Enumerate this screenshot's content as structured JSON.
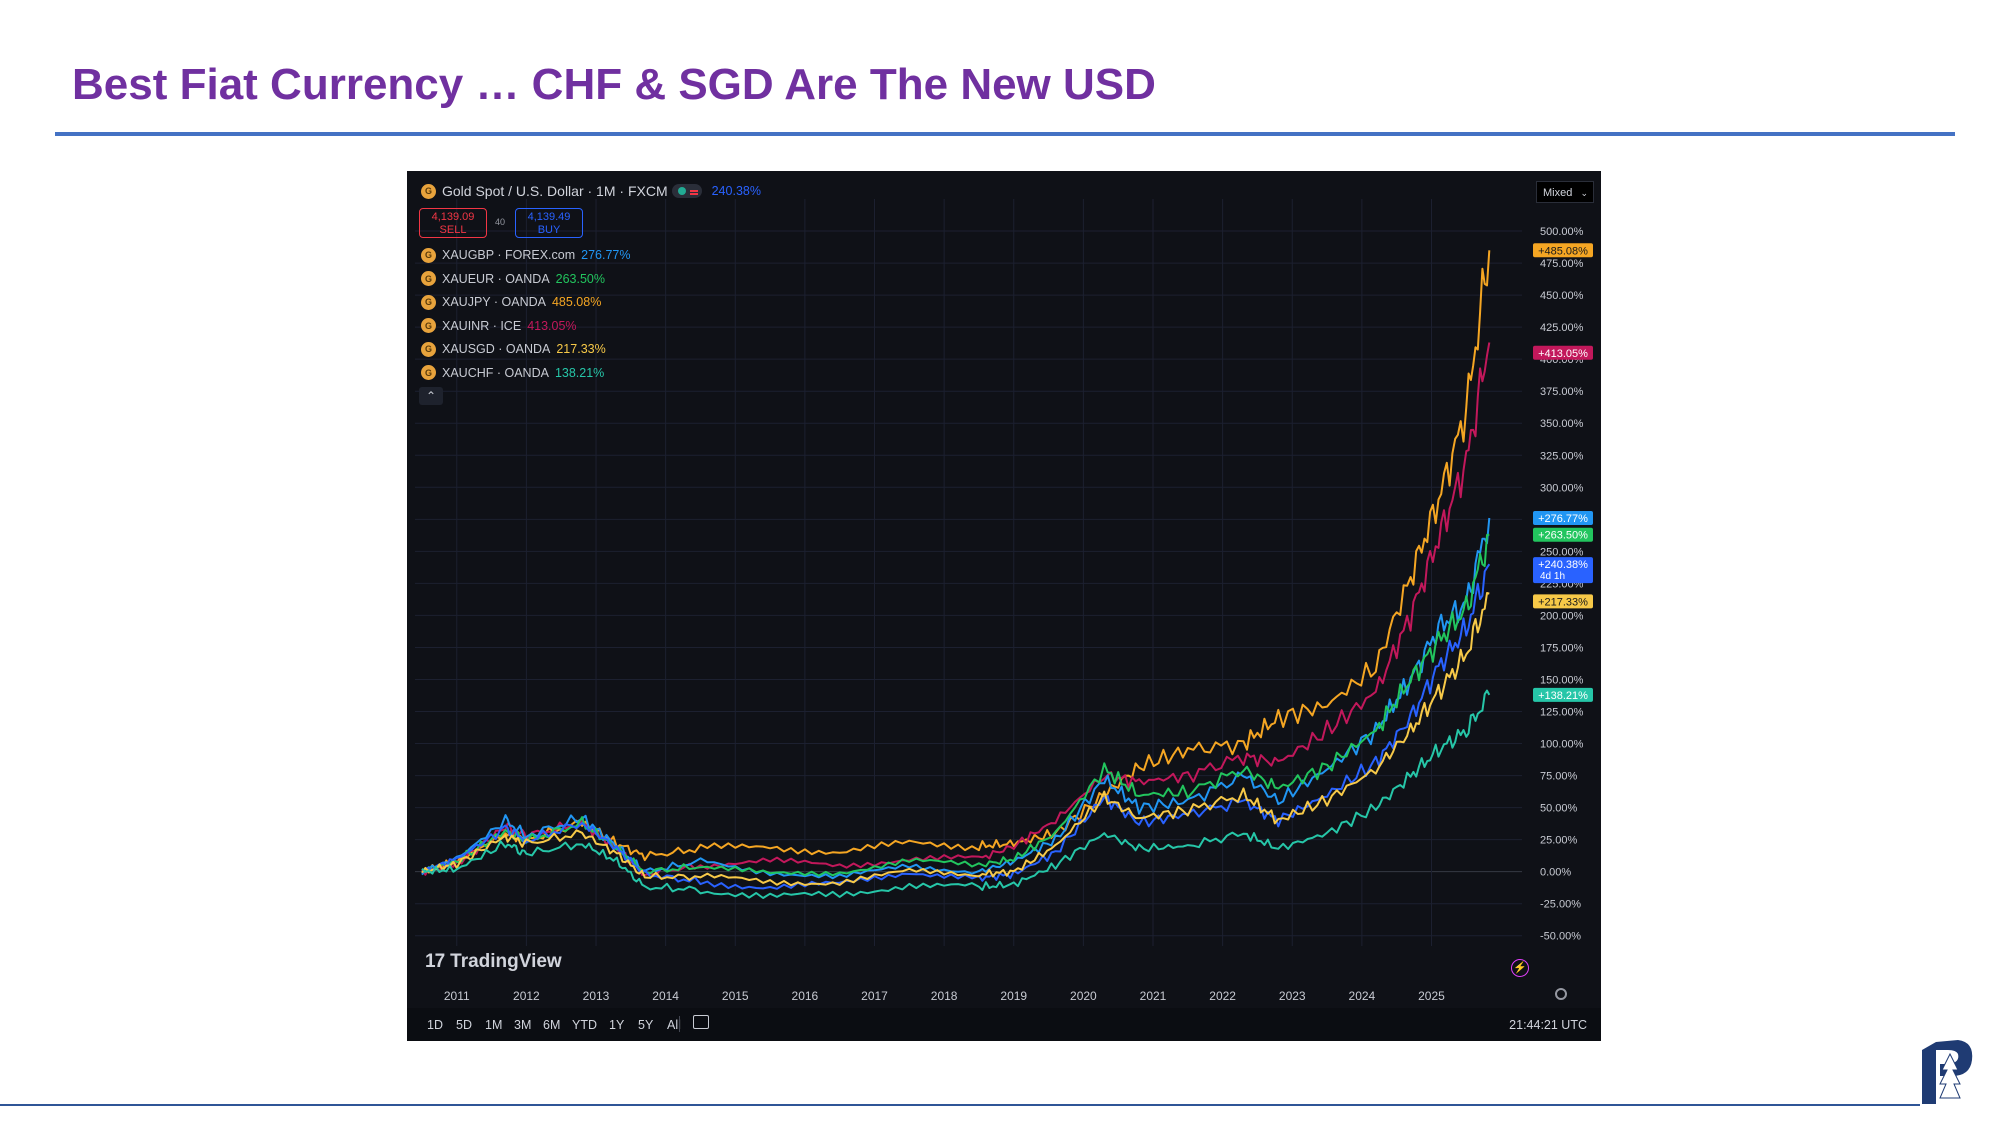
{
  "slide": {
    "title": "Best Fiat Currency … CHF & SGD Are The New USD"
  },
  "header": {
    "symbol": "Gold Spot / U.S. Dollar · 1M · FXCM",
    "symbol_pct": "240.38%",
    "sell_price": "4,139.09",
    "sell_label": "SELL",
    "spread": "40",
    "buy_price": "4,139.49",
    "buy_label": "BUY",
    "scale_mode": "Mixed"
  },
  "legend": [
    {
      "name": "XAUGBP · FOREX.com",
      "pct": "276.77%",
      "color": "#2196f3"
    },
    {
      "name": "XAUEUR · OANDA",
      "pct": "263.50%",
      "color": "#22c55e"
    },
    {
      "name": "XAUJPY · OANDA",
      "pct": "485.08%",
      "color": "#f5a623"
    },
    {
      "name": "XAUINR · ICE",
      "pct": "413.05%",
      "color": "#c2185b"
    },
    {
      "name": "XAUSGD · OANDA",
      "pct": "217.33%",
      "color": "#f7c948"
    },
    {
      "name": "XAUCHF · OANDA",
      "pct": "138.21%",
      "color": "#26c6a8"
    }
  ],
  "branding": {
    "watermark": "TradingView",
    "time": "21:44:21 UTC"
  },
  "ranges": [
    "1D",
    "5D",
    "1M",
    "3M",
    "6M",
    "YTD",
    "1Y",
    "5Y",
    "All"
  ],
  "chart_data": {
    "type": "line",
    "x_ticks": [
      "2011",
      "2012",
      "2013",
      "2014",
      "2015",
      "2016",
      "2017",
      "2018",
      "2019",
      "2020",
      "2021",
      "2022",
      "2023",
      "2024",
      "2025"
    ],
    "y_ticks": [
      "-50.00%",
      "-25.00%",
      "0.00%",
      "25.00%",
      "50.00%",
      "75.00%",
      "100.00%",
      "125.00%",
      "150.00%",
      "175.00%",
      "200.00%",
      "225.00%",
      "250.00%",
      "275.00%",
      "300.00%",
      "325.00%",
      "350.00%",
      "375.00%",
      "400.00%",
      "425.00%",
      "450.00%",
      "475.00%",
      "500.00%"
    ],
    "ylim": [
      -58,
      525
    ],
    "xlim": [
      2010.4,
      2026.3
    ],
    "grid": true,
    "x_years": [
      2010.5,
      2011,
      2011.7,
      2012,
      2012.8,
      2013.3,
      2013.7,
      2014.5,
      2015.5,
      2016.5,
      2017.5,
      2018.5,
      2019,
      2019.6,
      2020.3,
      2020.8,
      2021.5,
      2022.3,
      2022.8,
      2023.5,
      2024.2,
      2024.7,
      2025.1,
      2025.5,
      2025.83
    ],
    "series": [
      {
        "color": "#f5a623",
        "label": "+485.08%",
        "values": [
          0,
          8,
          30,
          25,
          38,
          22,
          12,
          18,
          20,
          15,
          22,
          20,
          22,
          30,
          60,
          82,
          95,
          100,
          120,
          130,
          160,
          230,
          290,
          360,
          485
        ]
      },
      {
        "color": "#c2185b",
        "label": "+413.05%",
        "values": [
          0,
          6,
          35,
          28,
          38,
          18,
          -2,
          5,
          8,
          5,
          10,
          10,
          20,
          40,
          75,
          70,
          75,
          90,
          85,
          110,
          140,
          200,
          260,
          320,
          413
        ]
      },
      {
        "color": "#2196f3",
        "label": "+276.77%",
        "values": [
          0,
          10,
          40,
          28,
          42,
          20,
          0,
          8,
          0,
          -5,
          5,
          0,
          8,
          25,
          72,
          50,
          55,
          75,
          55,
          80,
          110,
          150,
          190,
          210,
          276
        ]
      },
      {
        "color": "#22c55e",
        "label": "+263.50%",
        "values": [
          0,
          8,
          32,
          24,
          38,
          18,
          0,
          4,
          -2,
          0,
          8,
          5,
          10,
          30,
          80,
          60,
          62,
          80,
          65,
          82,
          110,
          150,
          180,
          205,
          263
        ]
      },
      {
        "color": "#2962ff",
        "label": "+240.38%",
        "values": [
          0,
          10,
          34,
          24,
          38,
          18,
          -2,
          -8,
          -12,
          -10,
          0,
          -5,
          -2,
          15,
          58,
          38,
          45,
          55,
          40,
          60,
          85,
          120,
          160,
          190,
          240
        ]
      },
      {
        "color": "#f7c948",
        "label": "+217.33%",
        "values": [
          0,
          6,
          28,
          22,
          30,
          14,
          -4,
          -4,
          -8,
          -8,
          0,
          -2,
          0,
          20,
          58,
          42,
          48,
          60,
          40,
          56,
          80,
          110,
          140,
          170,
          217
        ]
      },
      {
        "color": "#26c6a8",
        "label": "+138.21%",
        "values": [
          0,
          2,
          22,
          14,
          22,
          8,
          -12,
          -14,
          -20,
          -18,
          -10,
          -12,
          -10,
          5,
          30,
          18,
          20,
          30,
          18,
          30,
          50,
          75,
          95,
          110,
          138
        ]
      }
    ],
    "price_label": {
      "color": "#2962ff",
      "label": "+240.38%",
      "sub": "4d 1h",
      "value": 240
    }
  }
}
